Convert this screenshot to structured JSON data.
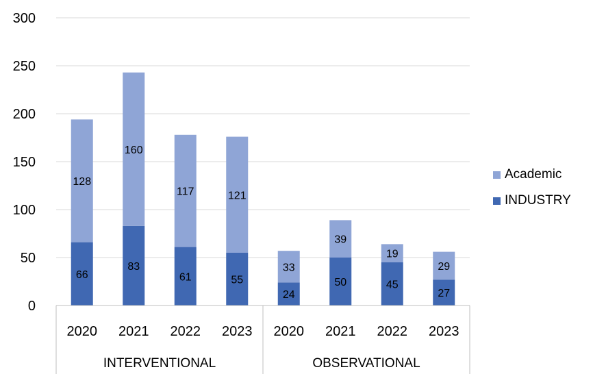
{
  "chart_data": {
    "type": "bar",
    "stacked": true,
    "groups": [
      {
        "label": "INTERVENTIONAL",
        "categories": [
          "2020",
          "2021",
          "2022",
          "2023"
        ]
      },
      {
        "label": "OBSERVATIONAL",
        "categories": [
          "2020",
          "2021",
          "2022",
          "2023"
        ]
      }
    ],
    "series": [
      {
        "name": "INDUSTRY",
        "color": "#4068b2",
        "values": [
          66,
          83,
          61,
          55,
          24,
          50,
          45,
          27
        ]
      },
      {
        "name": "Academic",
        "color": "#8fa5d6",
        "values": [
          128,
          160,
          117,
          121,
          33,
          39,
          19,
          29
        ]
      }
    ],
    "yticks": [
      "0",
      "50",
      "100",
      "150",
      "200",
      "250",
      "300"
    ],
    "ylim": [
      0,
      300
    ],
    "grid": true,
    "legend_position": "right"
  }
}
